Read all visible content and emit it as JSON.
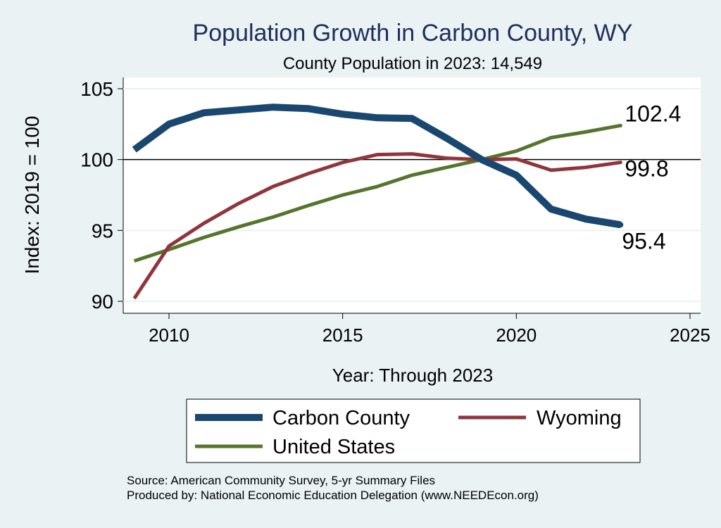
{
  "chart_data": {
    "type": "line",
    "title": "Population Growth in Carbon County, WY",
    "subtitle": "County Population in 2023: 14,549",
    "xlabel": "Year: Through 2023",
    "ylabel": "Index: 2019 = 100",
    "xlim": [
      2009,
      2025
    ],
    "ylim": [
      90,
      105
    ],
    "x_ticks": [
      2010,
      2015,
      2020,
      2025
    ],
    "x_tick_labels": [
      "2010",
      "2015",
      "2020",
      "2025"
    ],
    "y_ticks": [
      90,
      95,
      100,
      105
    ],
    "y_tick_labels": [
      "90",
      "95",
      "100",
      "105"
    ],
    "reference_line": 100,
    "grid": true,
    "x": [
      2009,
      2010,
      2011,
      2012,
      2013,
      2014,
      2015,
      2016,
      2017,
      2018,
      2019,
      2020,
      2021,
      2022,
      2023
    ],
    "series": [
      {
        "name": "Carbon  County",
        "color": "#1a476f",
        "values": [
          100.7,
          102.5,
          103.3,
          103.5,
          103.7,
          103.6,
          103.2,
          102.95,
          102.9,
          101.5,
          100.0,
          98.9,
          96.5,
          95.8,
          95.4
        ],
        "end_label": "95.4"
      },
      {
        "name": "Wyoming",
        "color": "#90353b",
        "values": [
          90.2,
          93.9,
          95.5,
          96.9,
          98.1,
          99.0,
          99.8,
          100.35,
          100.4,
          100.1,
          100.0,
          100.05,
          99.25,
          99.45,
          99.8
        ],
        "end_label": "99.8"
      },
      {
        "name": "United States",
        "color": "#55752f",
        "values": [
          92.85,
          93.65,
          94.5,
          95.25,
          95.95,
          96.75,
          97.5,
          98.1,
          98.9,
          99.45,
          100.0,
          100.6,
          101.55,
          101.95,
          102.4
        ],
        "end_label": "102.4"
      }
    ],
    "legend": {
      "position": "bottom",
      "entries": [
        "Carbon  County",
        "Wyoming",
        "United States"
      ]
    },
    "notes": [
      "Source: American Community Survey, 5-yr Summary Files",
      "Produced by: National Economic Education Delegation (www.NEEDEcon.org)"
    ]
  }
}
